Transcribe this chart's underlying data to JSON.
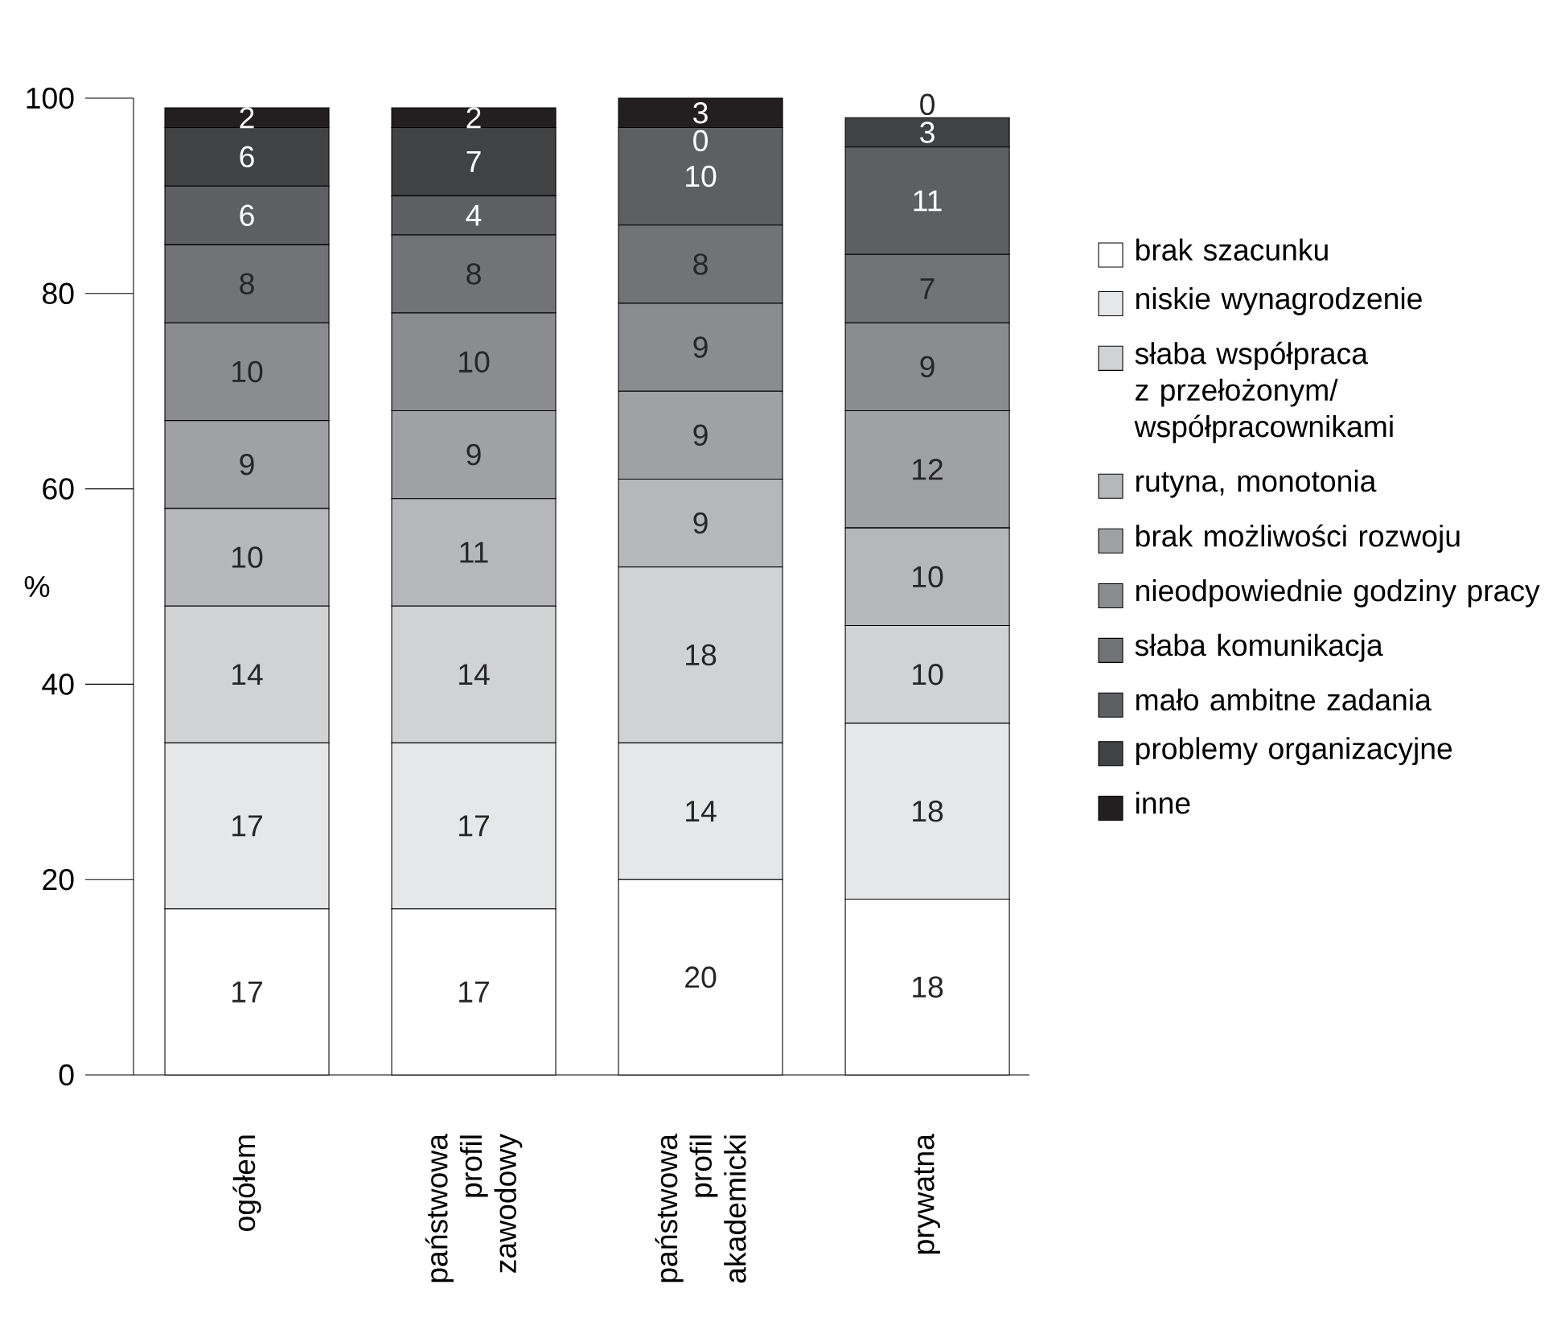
{
  "chart_data": {
    "type": "bar",
    "stacked": true,
    "ylabel": "%",
    "categories": [
      "ogółem",
      "państwowa profil zawodowy",
      "państwowa profil akademicki",
      "prywatna"
    ],
    "ylim": [
      0,
      100
    ],
    "yticks": [
      0,
      20,
      40,
      60,
      80,
      100
    ],
    "grid": false,
    "legend": "right",
    "data_labels": true,
    "series": [
      {
        "name": "brak szacunku",
        "color": "#ffffff",
        "values": [
          17,
          17,
          20,
          18
        ]
      },
      {
        "name": "niskie wynagrodzenie",
        "color": "#e6e7e8",
        "values": [
          17,
          17,
          14,
          18
        ]
      },
      {
        "name": "słaba współpraca z przełożonym/ współpracownikami",
        "color": "#d1d2d4",
        "values": [
          14,
          14,
          18,
          10
        ]
      },
      {
        "name": "rutyna, monotonia",
        "color": "#b6b7ba",
        "values": [
          10,
          11,
          9,
          10
        ]
      },
      {
        "name": "brak możliwości rozwoju",
        "color": "#a0a1a4",
        "values": [
          9,
          9,
          9,
          12
        ]
      },
      {
        "name": "nieodpowiednie godziny pracy",
        "color": "#8b8c8f",
        "values": [
          10,
          10,
          9,
          9
        ]
      },
      {
        "name": "słaba komunikacja",
        "color": "#727376",
        "values": [
          8,
          8,
          8,
          7
        ]
      },
      {
        "name": "mało ambitne zadania",
        "color": "#5e5f62",
        "values": [
          6,
          4,
          10,
          11
        ]
      },
      {
        "name": "problemy organizacyjne",
        "color": "#414244",
        "values": [
          6,
          7,
          0,
          3
        ]
      },
      {
        "name": "inne",
        "color": "#231f20",
        "values": [
          2,
          2,
          3,
          0
        ]
      }
    ]
  }
}
